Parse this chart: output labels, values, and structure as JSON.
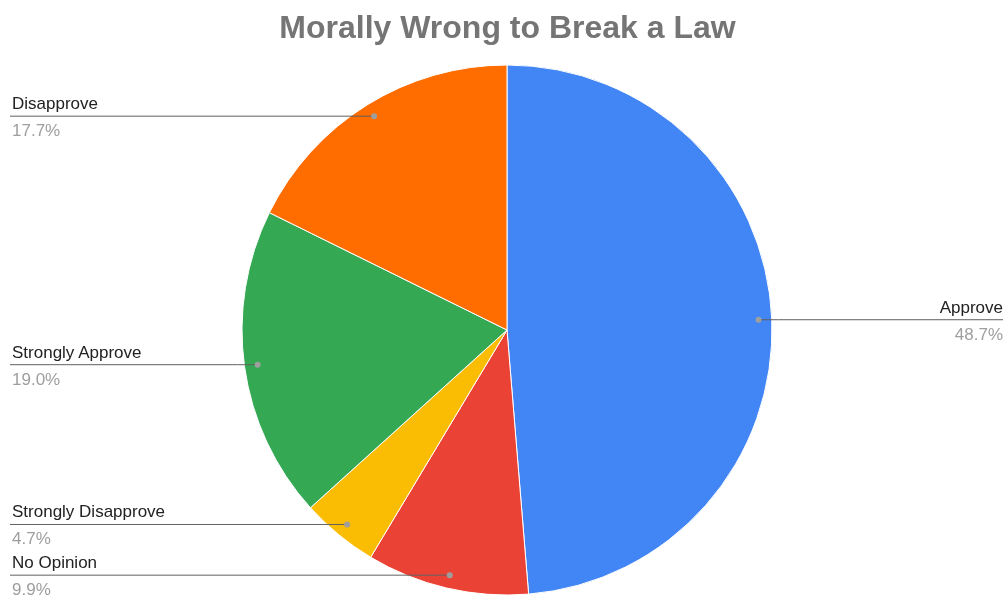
{
  "chart_data": {
    "type": "pie",
    "title": "Morally Wrong to Break a Law",
    "categories": [
      "Approve",
      "No Opinion",
      "Strongly Disapprove",
      "Strongly Approve",
      "Disapprove"
    ],
    "values": [
      48.7,
      9.9,
      4.7,
      19.0,
      17.7
    ],
    "colors": [
      "#4285f4",
      "#ea4335",
      "#fbbc04",
      "#34a853",
      "#ff6d01"
    ],
    "value_labels": [
      "48.7%",
      "9.9%",
      "4.7%",
      "19.0%",
      "17.7%"
    ]
  }
}
